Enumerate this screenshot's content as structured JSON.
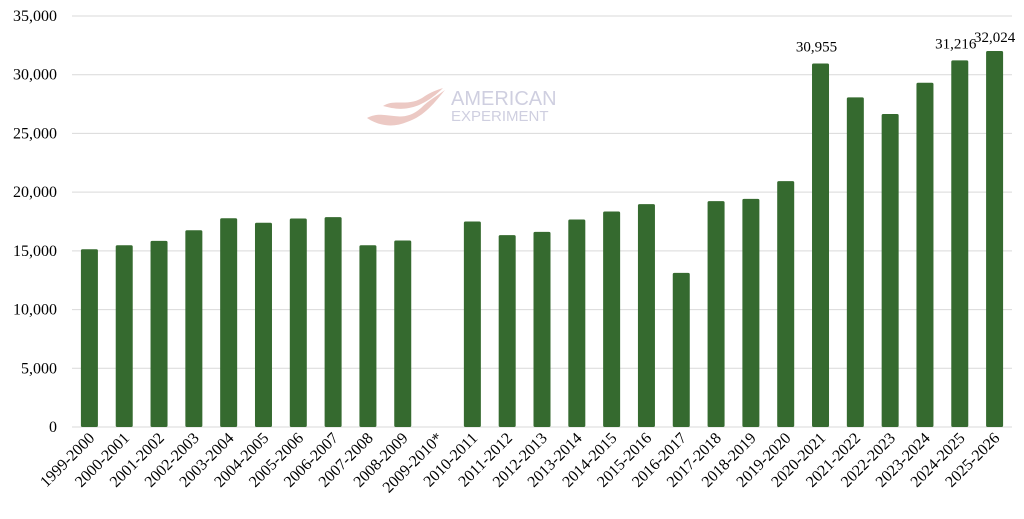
{
  "chart_data": {
    "type": "bar",
    "title": "",
    "xlabel": "",
    "ylabel": "",
    "ylim": [
      0,
      35000
    ],
    "yticks": [
      0,
      5000,
      10000,
      15000,
      20000,
      25000,
      30000,
      35000
    ],
    "ytick_labels": [
      "0",
      "5,000",
      "10,000",
      "15,000",
      "20,000",
      "25,000",
      "30,000",
      "35,000"
    ],
    "grid": true,
    "bar_color": "#356a2f",
    "categories": [
      "1999-2000",
      "2000-2001",
      "2001-2002",
      "2002-2003",
      "2003-2004",
      "2004-2005",
      "2005-2006",
      "2006-2007",
      "2007-2008",
      "2008-2009",
      "2009-2010*",
      "2010-2011",
      "2011-2012",
      "2012-2013",
      "2013-2014",
      "2014-2015",
      "2015-2016",
      "2016-2017",
      "2017-2018",
      "2018-2019",
      "2019-2020",
      "2020-2021",
      "2021-2022",
      "2022-2023",
      "2023-2024",
      "2024-2025",
      "2025-2026"
    ],
    "values": [
      15140,
      15480,
      15850,
      16760,
      17780,
      17390,
      17760,
      17870,
      15480,
      15880,
      null,
      17500,
      16340,
      16620,
      17670,
      18350,
      18980,
      13130,
      19230,
      19430,
      20940,
      30955,
      28070,
      26650,
      29320,
      31216,
      32024
    ],
    "data_labels": {
      "2020-2021": "30,955",
      "2024-2025": "31,216",
      "2025-2026": "32,024"
    }
  },
  "watermark": {
    "line1": "AMERICAN",
    "line2": "EXPERIMENT"
  }
}
